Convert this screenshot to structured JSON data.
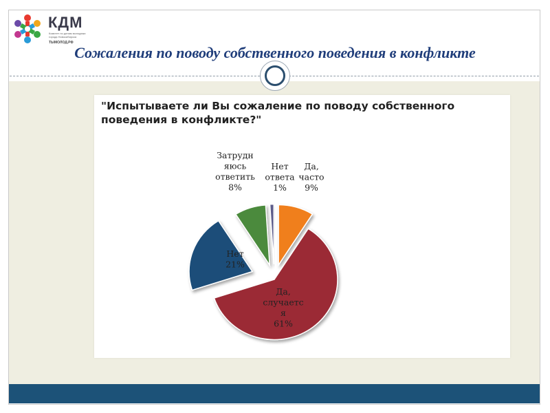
{
  "logo": {
    "title": "КДМ",
    "subtitle": "Комитет по делам молодежи города Новосибирска",
    "url": "ТЫМОЛОД.РФ"
  },
  "slide": {
    "title": "Сожаления по поводу собственного поведения в конфликте"
  },
  "colors": {
    "accent": "#1c5278",
    "title_text": "#1f3d7a",
    "content_bg": "#efeee1"
  },
  "chart_data": {
    "type": "pie",
    "title": "\"Испытываете ли Вы сожаление по поводу собственного поведения в конфликте?\"",
    "exploded": true,
    "slices": [
      {
        "label_lines": [
          "Да,",
          "часто"
        ],
        "value_text": "9%",
        "value": 9,
        "color": "#f07f1e"
      },
      {
        "label_lines": [
          "Да,",
          "случаетс",
          "я"
        ],
        "value_text": "61%",
        "value": 61,
        "color": "#9b2a35"
      },
      {
        "label_lines": [
          "Нет"
        ],
        "value_text": "21%",
        "value": 21,
        "color": "#1f4e79"
      },
      {
        "label_lines": [
          "Затрудн",
          "яюсь",
          "ответить"
        ],
        "value_text": "8%",
        "value": 8,
        "color": "#4c8a3c"
      },
      {
        "label_lines": [
          "Нет",
          "ответа"
        ],
        "value_text": "1%",
        "value": 1,
        "color": "#5c5c8a"
      }
    ]
  }
}
